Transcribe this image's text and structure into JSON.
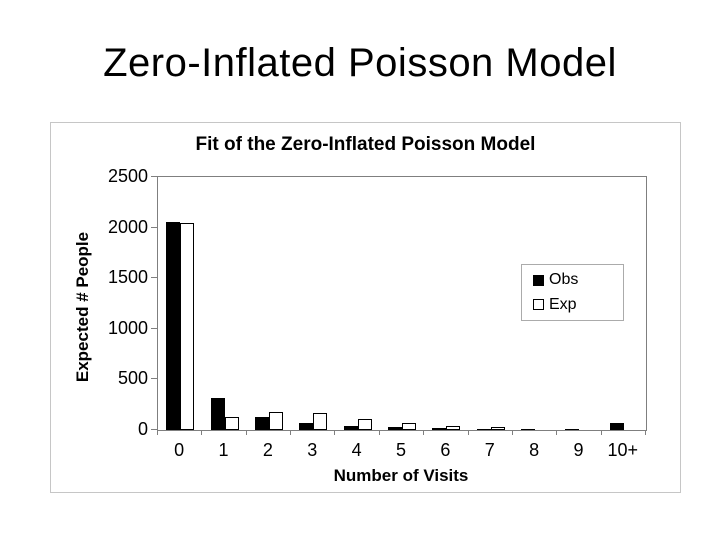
{
  "slide": {
    "title": "Zero-Inflated Poisson Model",
    "background_color": "#ffffff",
    "text_color": "#000000"
  },
  "chart_data": {
    "type": "bar",
    "title": "Fit of the Zero-Inflated Poisson Model",
    "xlabel": "Number of Visits",
    "ylabel": "Expected # People",
    "categories": [
      "0",
      "1",
      "2",
      "3",
      "4",
      "5",
      "6",
      "7",
      "8",
      "9",
      "10+"
    ],
    "series": [
      {
        "name": "Obs",
        "style": "solid",
        "color": "#000000",
        "values": [
          2060,
          320,
          130,
          65,
          40,
          25,
          15,
          12,
          12,
          12,
          70
        ]
      },
      {
        "name": "Exp",
        "style": "outline",
        "color": "#ffffff",
        "values": [
          2050,
          125,
          175,
          165,
          110,
          70,
          35,
          14,
          5,
          2,
          1
        ]
      }
    ],
    "ylim": [
      0,
      2500
    ],
    "yticks": [
      0,
      500,
      1000,
      1500,
      2000,
      2500
    ],
    "grid": false,
    "legend_position": "right-middle",
    "plot_border_color": "#7f7f7f",
    "bar_colors": {
      "obs": "#000000",
      "exp": "#ffffff"
    }
  }
}
